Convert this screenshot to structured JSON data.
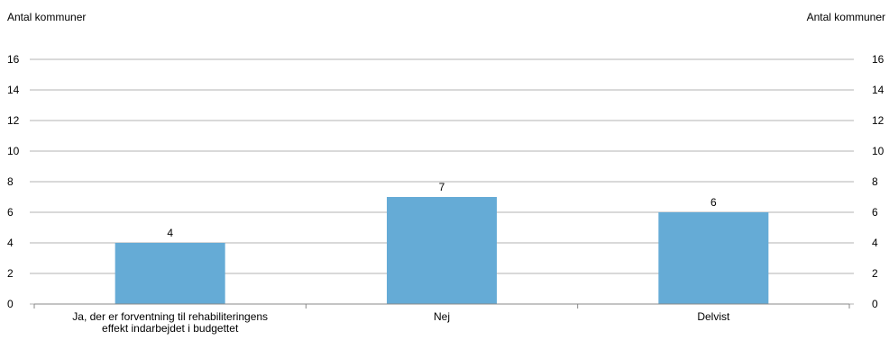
{
  "chart_data": {
    "type": "bar",
    "categories": [
      "Ja, der er forventning til rehabiliteringens effekt indarbejdet i budgettet",
      "Nej",
      "Delvist"
    ],
    "values": [
      4,
      7,
      6
    ],
    "data_labels": [
      "4",
      "7",
      "6"
    ],
    "ylabel_left": "Antal kommuner",
    "ylabel_right": "Antal kommuner",
    "ylim": [
      0,
      16
    ],
    "yticks": [
      0,
      2,
      4,
      6,
      8,
      10,
      12,
      14,
      16
    ],
    "grid": true,
    "bar_color": "#65ABD6",
    "grid_color": "#B3B3B3"
  }
}
